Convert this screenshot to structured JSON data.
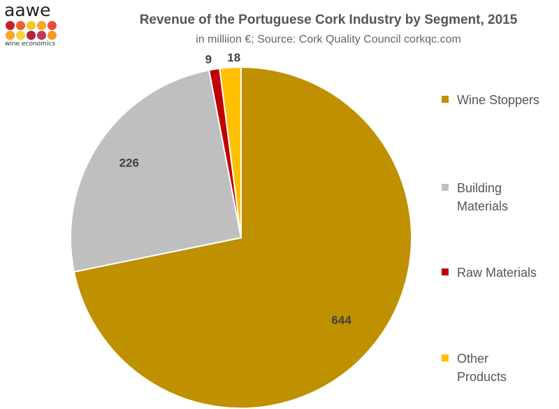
{
  "logo": {
    "wordmark": "aawe",
    "tagline": "wine economics",
    "dot_colors": [
      "#c8202f",
      "#e8622a",
      "#f2c82e",
      "#f6a623",
      "#e94e3a",
      "#f6a623",
      "#f9d33c",
      "#b5223f",
      "#c0385d",
      "#f59a2a"
    ]
  },
  "chart_data": {
    "type": "pie",
    "title": "Revenue of the Portuguese Cork Industry by Segment, 2015",
    "subtitle": "in milliion €; Source: Cork Quality Council corkqc.com",
    "categories": [
      "Wine Stoppers",
      "Building Materials",
      "Raw Materials",
      "Other Products"
    ],
    "values": [
      644,
      226,
      9,
      18
    ],
    "labels": [
      "644",
      "226",
      "9",
      "18"
    ],
    "colors": [
      "#bf9000",
      "#bfbfbf",
      "#c00000",
      "#ffc000"
    ],
    "legend_position": "right"
  },
  "legend": {
    "items": [
      {
        "line1": "Wine Stoppers",
        "line2": ""
      },
      {
        "line1": "Building",
        "line2": "Materials"
      },
      {
        "line1": "Raw Materials",
        "line2": ""
      },
      {
        "line1": "Other",
        "line2": "Products"
      }
    ]
  }
}
